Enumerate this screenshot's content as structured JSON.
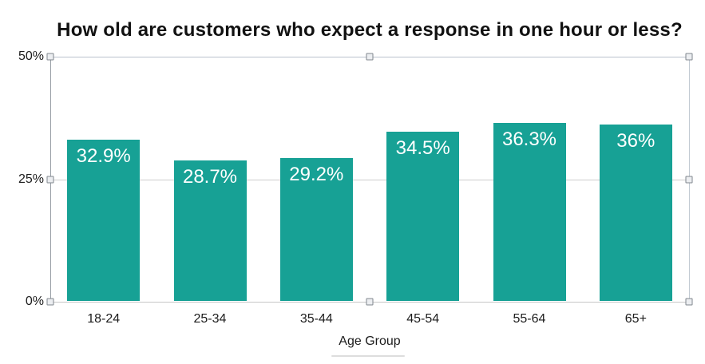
{
  "chart_data": {
    "type": "bar",
    "title": "How old are customers who expect a response in one hour or less?",
    "xlabel": "Age Group",
    "ylabel": "",
    "categories": [
      "18-24",
      "25-34",
      "35-44",
      "45-54",
      "55-64",
      "65+"
    ],
    "values": [
      32.9,
      28.7,
      29.2,
      34.5,
      36.3,
      36
    ],
    "value_labels": [
      "32.9%",
      "28.7%",
      "29.2%",
      "34.5%",
      "36.3%",
      "36%"
    ],
    "y_ticks": [
      {
        "label": "50%",
        "value": 50
      },
      {
        "label": "25%",
        "value": 25
      },
      {
        "label": "0%",
        "value": 0
      }
    ],
    "ylim": [
      0,
      50
    ],
    "grid": true,
    "legend_position": "none",
    "bar_color": "#17a195",
    "value_label_color": "#ffffff"
  }
}
